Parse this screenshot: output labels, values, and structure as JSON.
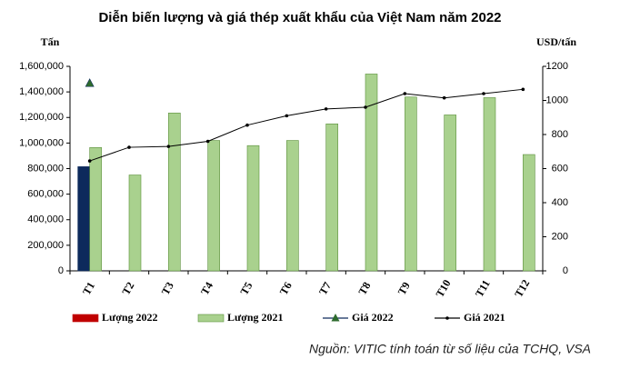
{
  "chart_data": {
    "type": "bar-line",
    "title": "Diễn biến lượng và giá thép xuất khẩu của Việt Nam năm 2022",
    "y_label": "Tấn",
    "y2_label": "USD/tấn",
    "source": "Nguồn: VITIC tính toán từ số liệu của TCHQ, VSA",
    "categories": [
      "T1",
      "T2",
      "T3",
      "T4",
      "T5",
      "T6",
      "T7",
      "T8",
      "T9",
      "T10",
      "T11",
      "T12"
    ],
    "series": [
      {
        "name": "Lượng 2022",
        "kind": "bar",
        "color": "#0d2a5c",
        "legend_color": "#c00000",
        "values": [
          815000,
          null,
          null,
          null,
          null,
          null,
          null,
          null,
          null,
          null,
          null,
          null
        ]
      },
      {
        "name": "Lượng 2021",
        "kind": "bar",
        "color": "#a9d18e",
        "values": [
          965000,
          750000,
          1235000,
          1020000,
          980000,
          1020000,
          1150000,
          1540000,
          1360000,
          1220000,
          1355000,
          910000
        ]
      },
      {
        "name": "Giá 2022",
        "kind": "line",
        "axis": "y2",
        "color": "#0d2a5c",
        "marker_color": "#2e6b2e",
        "values": [
          1100,
          null,
          null,
          null,
          null,
          null,
          null,
          null,
          null,
          null,
          null,
          null
        ]
      },
      {
        "name": "Giá 2021",
        "kind": "line",
        "axis": "y2",
        "color": "#000000",
        "values": [
          645,
          725,
          730,
          760,
          855,
          910,
          950,
          960,
          1040,
          1015,
          1040,
          1065
        ]
      }
    ],
    "ylim": [
      0,
      1600000
    ],
    "yticks": [
      0,
      {
        "value": 200000,
        "label": "200,000"
      },
      {
        "value": 400000,
        "label": "400,000"
      },
      {
        "value": 600000,
        "label": "600,000"
      },
      {
        "value": 800000,
        "label": "800,000"
      },
      {
        "value": 1000000,
        "label": "1,000,000"
      },
      {
        "value": 1200000,
        "label": "1,200,000"
      },
      {
        "value": 1400000,
        "label": "1,400,000"
      },
      {
        "value": 1600000,
        "label": "1,600,000"
      }
    ],
    "y2lim": [
      0,
      1200
    ],
    "y2ticks": [
      0,
      200,
      400,
      600,
      800,
      1000,
      1200
    ],
    "grid": false,
    "legend": "bottom"
  }
}
